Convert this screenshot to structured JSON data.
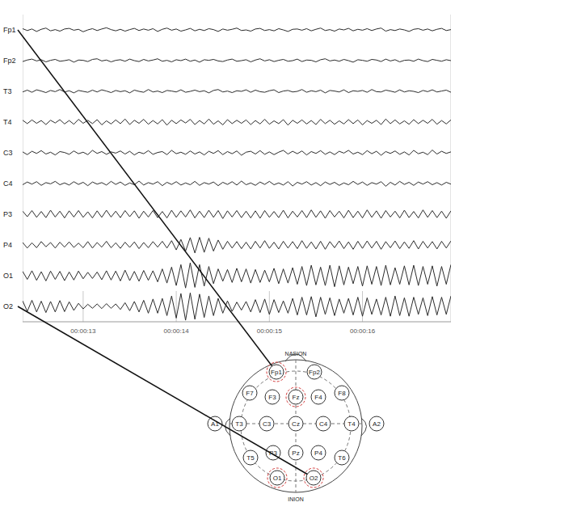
{
  "chart_data": {
    "type": "line",
    "tick_labels": "x",
    "grid": true,
    "x": [
      12.35,
      12.4,
      12.45,
      12.5,
      12.55,
      12.6,
      12.65,
      12.7,
      12.75,
      12.8,
      12.85,
      12.9,
      12.95,
      13,
      13.05,
      13.1,
      13.15,
      13.2,
      13.25,
      13.3,
      13.35,
      13.4,
      13.45,
      13.5,
      13.55,
      13.6,
      13.65,
      13.7,
      13.75,
      13.8,
      13.85,
      13.9,
      13.95,
      14,
      14.05,
      14.1,
      14.15,
      14.2,
      14.25,
      14.3,
      14.35,
      14.4,
      14.45,
      14.5,
      14.55,
      14.6,
      14.65,
      14.7,
      14.75,
      14.8,
      14.85,
      14.9,
      14.95,
      15,
      15.05,
      15.1,
      15.15,
      15.2,
      15.25,
      15.3,
      15.35,
      15.4,
      15.45,
      15.5,
      15.55,
      15.6,
      15.65,
      15.7,
      15.75,
      15.8,
      15.85,
      15.9,
      15.95,
      16,
      16.05,
      16.1,
      16.15,
      16.2,
      16.25,
      16.3,
      16.35,
      16.4,
      16.45,
      16.5,
      16.55,
      16.6,
      16.65,
      16.7,
      16.75,
      16.8,
      16.85,
      16.9,
      16.95
    ],
    "xlim": [
      12.35,
      16.95
    ],
    "xticks": [
      {
        "value": 13,
        "label": "00:00:13"
      },
      {
        "value": 14,
        "label": "00:00:14"
      },
      {
        "value": 15,
        "label": "00:00:15"
      },
      {
        "value": 16,
        "label": "00:00:16"
      }
    ],
    "ylim": [
      -50,
      50
    ],
    "series": [
      {
        "name": "Fp1",
        "color": "#2b2b2b",
        "values": [
          4,
          -2,
          3,
          -5,
          2,
          6,
          -3,
          1,
          -4,
          3,
          5,
          -1,
          2,
          -6,
          0,
          4,
          -2,
          3,
          7,
          1,
          -3,
          2,
          -4,
          1,
          5,
          -2,
          3,
          -1,
          4,
          -5,
          2,
          6,
          -1,
          3,
          -4,
          0,
          5,
          -3,
          2,
          -2,
          4,
          1,
          -5,
          3,
          -1,
          2,
          6,
          -2,
          0,
          -4,
          3,
          5,
          -2,
          1,
          -3,
          4,
          0,
          -5,
          2,
          3,
          -1,
          4,
          -3,
          2,
          6,
          -2,
          1,
          -4,
          3,
          0,
          5,
          -3,
          2,
          -1,
          4,
          -2,
          3,
          6,
          -4,
          1,
          -2,
          3,
          0,
          -5,
          2,
          4,
          -1,
          3,
          -3,
          2,
          5,
          -2,
          1
        ]
      },
      {
        "name": "Fp2",
        "color": "#2b2b2b",
        "values": [
          -3,
          2,
          5,
          -1,
          3,
          -4,
          1,
          4,
          -2,
          0,
          3,
          -5,
          2,
          1,
          -3,
          4,
          6,
          -1,
          2,
          -4,
          1,
          3,
          -2,
          5,
          0,
          -3,
          4,
          -1,
          2,
          6,
          -2,
          1,
          -4,
          3,
          0,
          5,
          -2,
          2,
          -5,
          3,
          1,
          4,
          -1,
          -3,
          2,
          5,
          -2,
          0,
          3,
          -4,
          2,
          6,
          -1,
          3,
          -3,
          1,
          4,
          -2,
          0,
          5,
          -3,
          2,
          1,
          -4,
          3,
          6,
          -1,
          2,
          -2,
          4,
          0,
          -5,
          3,
          1,
          -2,
          4,
          2,
          -3,
          5,
          -1,
          3,
          -4,
          1,
          2,
          -2,
          5,
          0,
          -3,
          4,
          1,
          -2,
          3,
          0
        ]
      },
      {
        "name": "T3",
        "color": "#2b2b2b",
        "values": [
          -2,
          4,
          -3,
          5,
          1,
          -4,
          3,
          -1,
          6,
          -2,
          2,
          -5,
          3,
          0,
          -3,
          4,
          -2,
          5,
          1,
          -4,
          3,
          -1,
          2,
          -5,
          4,
          0,
          -3,
          6,
          -2,
          1,
          -4,
          3,
          1,
          -2,
          5,
          -3,
          0,
          4,
          -1,
          2,
          -5,
          3,
          6,
          -2,
          1,
          -4,
          2,
          0,
          5,
          -3,
          4,
          -1,
          -3,
          2,
          5,
          -4,
          1,
          3,
          -2,
          0,
          6,
          -3,
          2,
          -1,
          4,
          -5,
          3,
          1,
          -2,
          5,
          -4,
          2,
          0,
          3,
          -3,
          6,
          -1,
          -2,
          4,
          1,
          -3,
          5,
          -2,
          2,
          0,
          -4,
          3,
          -1,
          5,
          -2,
          1,
          4,
          -3
        ]
      },
      {
        "name": "T4",
        "color": "#2b2b2b",
        "values": [
          6,
          -5,
          7,
          -4,
          5,
          -8,
          6,
          -3,
          8,
          -6,
          5,
          -7,
          9,
          -4,
          6,
          -5,
          8,
          -9,
          4,
          -6,
          7,
          -5,
          10,
          -8,
          6,
          -4,
          9,
          -7,
          5,
          -6,
          8,
          -10,
          6,
          -5,
          7,
          -3,
          9,
          -8,
          5,
          -6,
          10,
          -7,
          4,
          -9,
          8,
          -5,
          6,
          -4,
          7,
          -8,
          5,
          -6,
          9,
          -7,
          4,
          -5,
          8,
          -10,
          6,
          -4,
          7,
          -6,
          5,
          -8,
          9,
          -5,
          6,
          -7,
          4,
          -6,
          8,
          -5,
          7,
          -9,
          5,
          -4,
          6,
          -8,
          10,
          -5,
          7,
          -6,
          4,
          -7,
          8,
          -5,
          6,
          -4,
          9,
          -7,
          5,
          -6,
          7
        ]
      },
      {
        "name": "C3",
        "color": "#2b2b2b",
        "values": [
          3,
          -6,
          5,
          -2,
          7,
          -4,
          2,
          -7,
          4,
          1,
          -5,
          6,
          -3,
          2,
          -6,
          8,
          -2,
          4,
          -5,
          3,
          -1,
          6,
          -4,
          5,
          -7,
          2,
          -3,
          7,
          -5,
          1,
          4,
          -6,
          8,
          -3,
          2,
          -5,
          6,
          -4,
          3,
          -7,
          5,
          -2,
          7,
          -6,
          4,
          -3,
          6,
          -8,
          2,
          5,
          -4,
          7,
          -5,
          3,
          -6,
          2,
          8,
          -4,
          5,
          -3,
          6,
          -7,
          4,
          -2,
          7,
          -5,
          3,
          -6,
          5,
          -1,
          8,
          -4,
          2,
          -6,
          7,
          -3,
          5,
          -8,
          4,
          -2,
          6,
          -5,
          3,
          -7,
          8,
          -3,
          2,
          -6,
          9,
          -4,
          5,
          -2,
          3
        ]
      },
      {
        "name": "C4",
        "color": "#2b2b2b",
        "values": [
          -4,
          5,
          -2,
          6,
          -6,
          3,
          -1,
          7,
          -4,
          2,
          -5,
          6,
          -3,
          4,
          -7,
          5,
          -2,
          3,
          -5,
          7,
          -3,
          5,
          -6,
          2,
          -4,
          8,
          -5,
          3,
          -2,
          6,
          -7,
          4,
          -3,
          6,
          -5,
          2,
          -4,
          7,
          -6,
          3,
          -2,
          5,
          -7,
          4,
          -3,
          6,
          -5,
          8,
          -4,
          2,
          -6,
          5,
          -3,
          7,
          -4,
          2,
          -5,
          6,
          -8,
          4,
          -2,
          6,
          -5,
          3,
          -7,
          5,
          -3,
          4,
          -6,
          2,
          -4,
          7,
          -3,
          5,
          -6,
          3,
          -2,
          6,
          -9,
          4,
          -5,
          7,
          -3,
          4,
          -6,
          5,
          -2,
          6,
          -4,
          3,
          -5,
          4,
          -2
        ]
      },
      {
        "name": "P3",
        "color": "#2b2b2b",
        "values": [
          10,
          -8,
          12,
          -10,
          9,
          -11,
          13,
          -9,
          10,
          -12,
          11,
          -9,
          12,
          -10,
          8,
          -12,
          11,
          -10,
          13,
          -9,
          10,
          -11,
          12,
          -8,
          11,
          -13,
          10,
          -9,
          12,
          -11,
          9,
          -12,
          13,
          -10,
          11,
          -9,
          14,
          -12,
          10,
          -11,
          13,
          -10,
          12,
          -14,
          11,
          -9,
          12,
          -11,
          10,
          -12,
          11,
          -13,
          12,
          -10,
          9,
          -11,
          13,
          -12,
          10,
          -9,
          12,
          -11,
          14,
          -10,
          11,
          -13,
          12,
          -9,
          10,
          -12,
          13,
          -11,
          10,
          -12,
          14,
          -10,
          11,
          -13,
          12,
          -9,
          10,
          -12,
          13,
          -11,
          9,
          -12,
          14,
          -10,
          12,
          -11,
          10,
          -13,
          11
        ]
      },
      {
        "name": "P4",
        "color": "#2b2b2b",
        "values": [
          8,
          -10,
          7,
          -9,
          11,
          -6,
          8,
          -10,
          9,
          -7,
          10,
          -8,
          6,
          -9,
          11,
          -10,
          8,
          -7,
          12,
          -9,
          7,
          -11,
          9,
          -8,
          10,
          -12,
          8,
          -9,
          11,
          -7,
          12,
          -10,
          14,
          -16,
          18,
          -20,
          24,
          -26,
          25,
          -24,
          22,
          -20,
          16,
          -14,
          12,
          -10,
          11,
          -12,
          9,
          -13,
          12,
          -10,
          14,
          -11,
          9,
          -13,
          12,
          -10,
          11,
          -12,
          14,
          -11,
          10,
          -13,
          12,
          -14,
          11,
          -9,
          13,
          -12,
          10,
          -14,
          12,
          -11,
          13,
          -10,
          12,
          -14,
          11,
          -9,
          13,
          -12,
          10,
          -11,
          14,
          -13,
          12,
          -10,
          11,
          -13,
          12,
          -10,
          13
        ]
      },
      {
        "name": "O1",
        "color": "#2b2b2b",
        "values": [
          14,
          -12,
          16,
          -15,
          13,
          -17,
          15,
          -12,
          14,
          -16,
          12,
          -14,
          15,
          -10,
          11,
          -9,
          12,
          -13,
          16,
          -14,
          15,
          -17,
          18,
          -16,
          14,
          -18,
          17,
          -15,
          16,
          -20,
          22,
          -24,
          28,
          -32,
          36,
          -40,
          42,
          -38,
          36,
          -34,
          30,
          -26,
          22,
          -18,
          20,
          -22,
          24,
          -20,
          22,
          -24,
          20,
          -22,
          18,
          -20,
          24,
          -26,
          22,
          -24,
          26,
          -28,
          30,
          -32,
          34,
          -30,
          28,
          -32,
          34,
          -36,
          32,
          -30,
          28,
          -26,
          30,
          -34,
          32,
          -28,
          30,
          -32,
          34,
          -30,
          26,
          -28,
          32,
          -30,
          34,
          -32,
          30,
          -28,
          32,
          -34,
          30,
          -28,
          36
        ]
      },
      {
        "name": "O2",
        "color": "#2b2b2b",
        "values": [
          18,
          -16,
          20,
          -18,
          17,
          -20,
          16,
          -18,
          19,
          -17,
          15,
          -13,
          10,
          -8,
          7,
          -6,
          8,
          -7,
          9,
          -6,
          8,
          -10,
          12,
          -14,
          16,
          -18,
          20,
          -22,
          24,
          -22,
          26,
          -30,
          34,
          -38,
          42,
          -45,
          44,
          -42,
          40,
          -36,
          34,
          -30,
          26,
          -22,
          18,
          -16,
          14,
          -12,
          16,
          -18,
          22,
          -20,
          24,
          -26,
          22,
          -20,
          18,
          -22,
          26,
          -28,
          30,
          -28,
          32,
          -34,
          30,
          -26,
          28,
          -30,
          24,
          -22,
          26,
          -28,
          30,
          -32,
          28,
          -26,
          24,
          -28,
          30,
          -32,
          34,
          -30,
          28,
          -32,
          30,
          -26,
          28,
          -30,
          32,
          -28,
          30,
          -26,
          34
        ]
      }
    ]
  },
  "head": {
    "top_label": "NASION",
    "bottom_label": "INION",
    "electrodes": [
      {
        "label": "Fp1",
        "highlighted": true
      },
      {
        "label": "Fp2",
        "highlighted": false
      },
      {
        "label": "F7",
        "highlighted": false
      },
      {
        "label": "F3",
        "highlighted": false
      },
      {
        "label": "Fz",
        "highlighted": true
      },
      {
        "label": "F4",
        "highlighted": false
      },
      {
        "label": "F8",
        "highlighted": false
      },
      {
        "label": "A1",
        "highlighted": false
      },
      {
        "label": "T3",
        "highlighted": false
      },
      {
        "label": "C3",
        "highlighted": false
      },
      {
        "label": "Cz",
        "highlighted": false
      },
      {
        "label": "C4",
        "highlighted": false
      },
      {
        "label": "T4",
        "highlighted": false
      },
      {
        "label": "A2",
        "highlighted": false
      },
      {
        "label": "T5",
        "highlighted": false
      },
      {
        "label": "P3",
        "highlighted": false
      },
      {
        "label": "Pz",
        "highlighted": false
      },
      {
        "label": "P4",
        "highlighted": false
      },
      {
        "label": "T6",
        "highlighted": false
      },
      {
        "label": "O1",
        "highlighted": true
      },
      {
        "label": "O2",
        "highlighted": true
      }
    ],
    "links": [
      {
        "channel": "Fp1",
        "electrode": "Fp1"
      },
      {
        "channel": "O2",
        "electrode": "O2"
      }
    ]
  }
}
